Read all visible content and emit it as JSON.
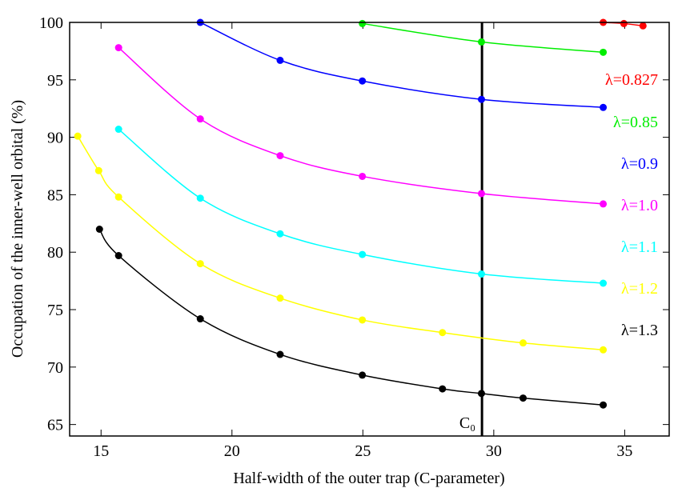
{
  "chart_data": {
    "type": "line",
    "xlabel": "Half-width of the outer trap (C-parameter)",
    "ylabel": "Occupation of the inner-well orbital (%)",
    "xlim": [
      13.8,
      36.7
    ],
    "ylim": [
      64,
      100
    ],
    "xticks": [
      15,
      20,
      25,
      30,
      35
    ],
    "yticks": [
      65,
      70,
      75,
      80,
      85,
      90,
      95,
      100
    ],
    "vline": {
      "x": 29.55,
      "label": "C₀"
    },
    "series": [
      {
        "name": "λ=0.827",
        "color": "#ff0000",
        "x": [
          34.18,
          34.97,
          35.7
        ],
        "values": [
          100.0,
          99.9,
          99.7
        ]
      },
      {
        "name": "λ=0.85",
        "color": "#00ee00",
        "x": [
          24.98,
          29.53,
          34.18
        ],
        "values": [
          99.9,
          98.3,
          97.4
        ]
      },
      {
        "name": "λ=0.9",
        "color": "#0000ff",
        "x": [
          18.79,
          21.84,
          24.98,
          29.53,
          34.18
        ],
        "values": [
          100.0,
          96.7,
          94.9,
          93.3,
          92.6
        ]
      },
      {
        "name": "λ=1.0",
        "color": "#ff00ff",
        "x": [
          15.67,
          18.79,
          21.84,
          24.98,
          29.53,
          34.18
        ],
        "values": [
          97.8,
          91.6,
          88.4,
          86.6,
          85.1,
          84.2
        ]
      },
      {
        "name": "λ=1.1",
        "color": "#00ffff",
        "x": [
          15.67,
          18.79,
          21.84,
          24.98,
          29.53,
          34.18
        ],
        "values": [
          90.7,
          84.7,
          81.6,
          79.8,
          78.1,
          77.3
        ]
      },
      {
        "name": "λ=1.2",
        "color": "#ffff00",
        "x": [
          14.11,
          14.91,
          15.67,
          18.79,
          21.84,
          24.98,
          28.04,
          31.12,
          34.18
        ],
        "values": [
          90.1,
          87.1,
          84.8,
          79.0,
          76.0,
          74.1,
          73.0,
          72.1,
          71.5
        ]
      },
      {
        "name": "λ=1.3",
        "color": "#000000",
        "x": [
          14.94,
          15.67,
          18.79,
          21.84,
          24.98,
          28.04,
          29.53,
          31.12,
          34.18
        ],
        "values": [
          82.0,
          79.7,
          74.2,
          71.1,
          69.3,
          68.1,
          67.7,
          67.3,
          66.7
        ]
      }
    ]
  }
}
